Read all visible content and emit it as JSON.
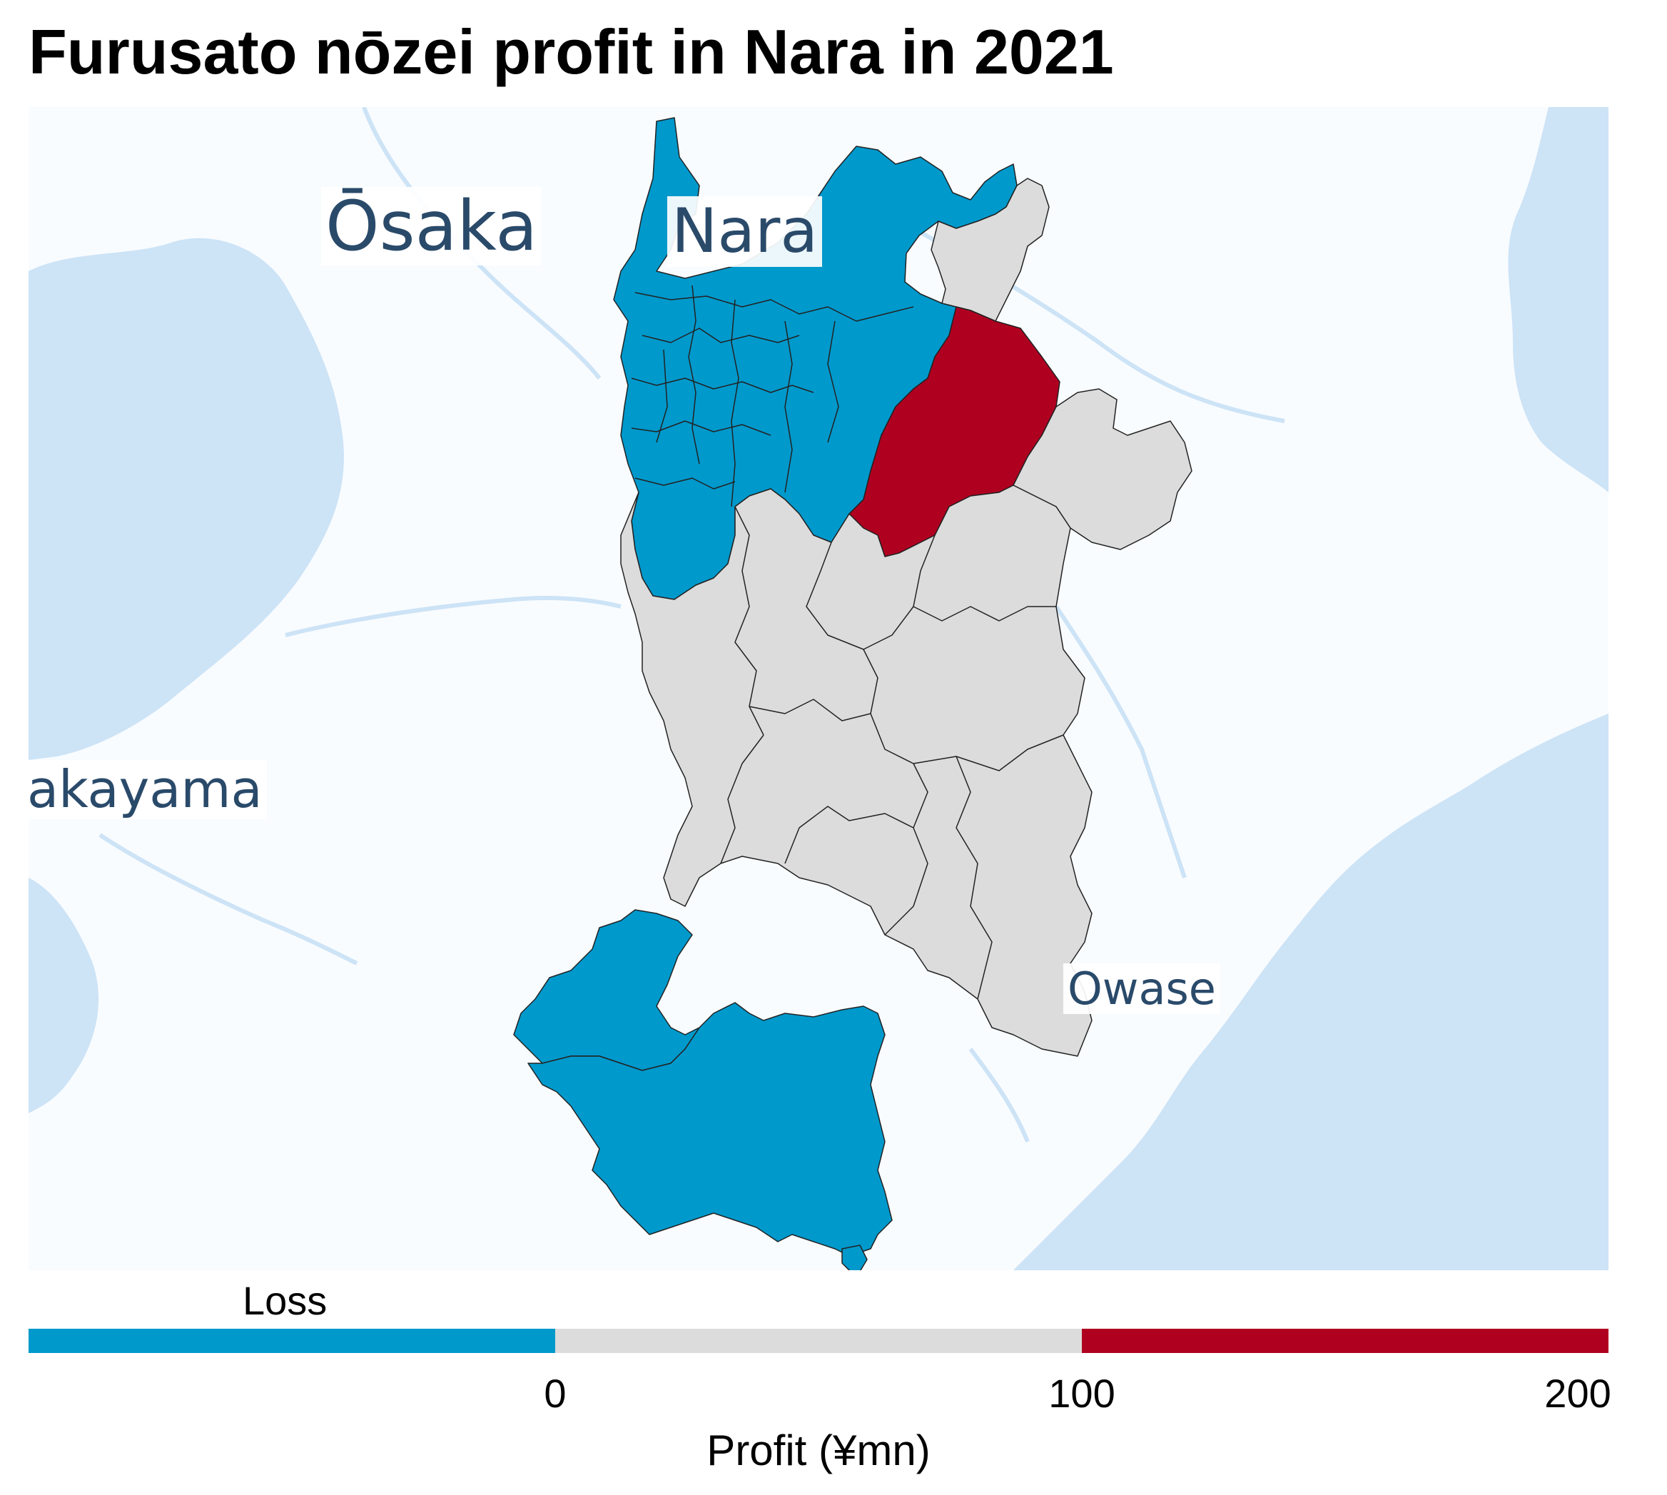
{
  "title": "Furusato nōzei profit in Nara in 2021",
  "map": {
    "land_color": "#f8fcff",
    "water_color": "#cde3f6",
    "region_colors": {
      "loss": "#0099cc",
      "neutral": "#dcdcdc",
      "high": "#b00020"
    },
    "place_labels": {
      "osaka": "Ōsaka",
      "nara": "Nara",
      "wakayama": "akayama",
      "owase": "Owase"
    }
  },
  "legend": {
    "loss_label": "Loss",
    "title": "Profit (¥mn)",
    "bins": [
      {
        "from": null,
        "to": 0,
        "color": "#0099cc"
      },
      {
        "from": 0,
        "to": 100,
        "color": "#dcdcdc"
      },
      {
        "from": 100,
        "to": 200,
        "color": "#b00020"
      }
    ],
    "ticks": [
      "0",
      "100",
      "200"
    ]
  }
}
